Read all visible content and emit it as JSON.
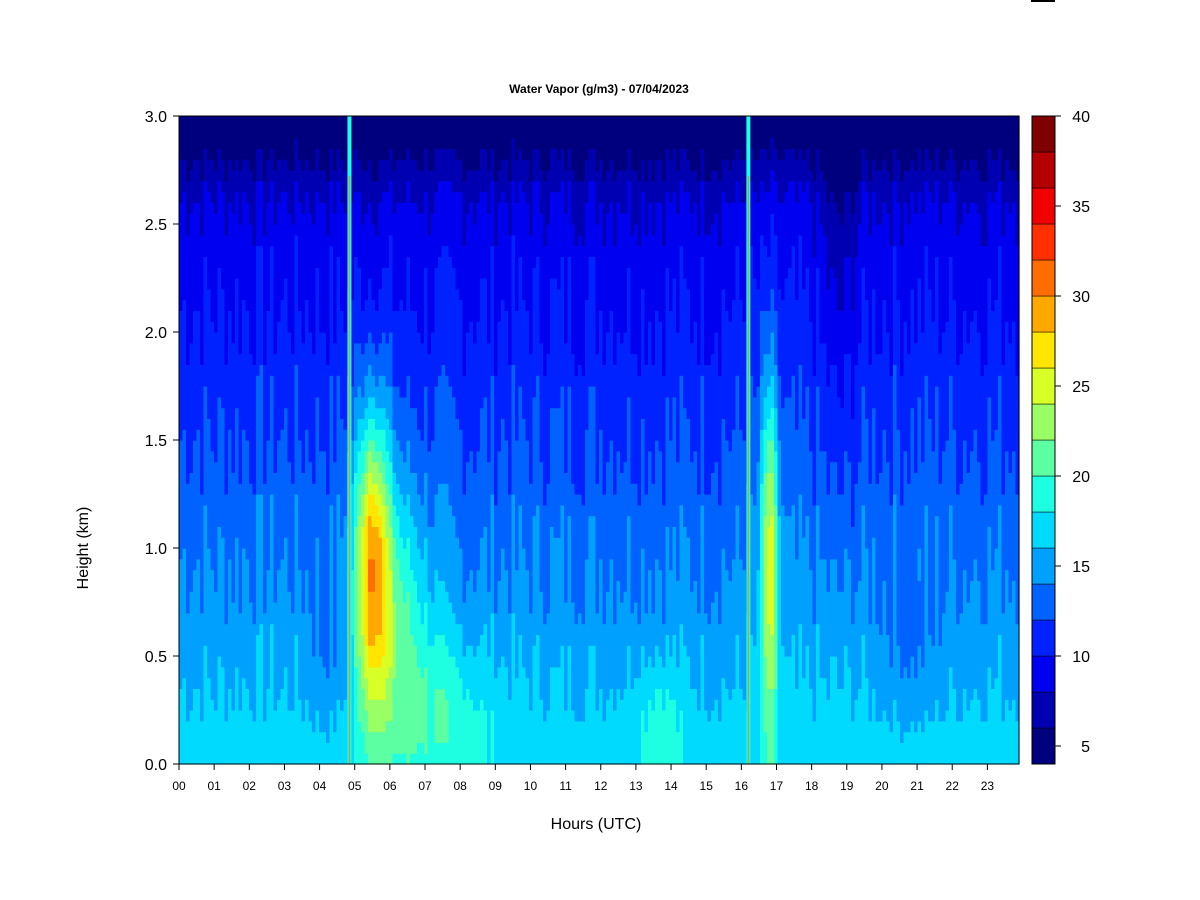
{
  "chart_data": {
    "type": "heatmap",
    "title": "Water Vapor (g/m3) - 07/04/2023",
    "xlabel": "Hours (UTC)",
    "ylabel": "Height (km)",
    "xlim": [
      0,
      23.9
    ],
    "ylim": [
      0.0,
      3.0
    ],
    "x_ticks": [
      "00",
      "01",
      "02",
      "03",
      "04",
      "05",
      "06",
      "07",
      "08",
      "09",
      "10",
      "11",
      "12",
      "13",
      "14",
      "15",
      "16",
      "17",
      "18",
      "19",
      "20",
      "21",
      "22",
      "23"
    ],
    "y_ticks": [
      "0.0",
      "0.5",
      "1.0",
      "1.5",
      "2.0",
      "2.5",
      "3.0"
    ],
    "colorbar": {
      "range": [
        4,
        40
      ],
      "step": 2,
      "tick_values": [
        5,
        10,
        15,
        20,
        25,
        30,
        35,
        40
      ],
      "tick_labels": [
        "5",
        "10",
        "15",
        "20",
        "25",
        "30",
        "35",
        "40"
      ],
      "colors": [
        "#00007f",
        "#0000b2",
        "#0000f0",
        "#0022ff",
        "#0062ff",
        "#00a0ff",
        "#00daff",
        "#1effe1",
        "#5cffa2",
        "#9aff64",
        "#d8ff26",
        "#ffe500",
        "#ffa800",
        "#ff6c00",
        "#ff2f00",
        "#f10000",
        "#b40000",
        "#7f0000"
      ]
    },
    "features": [
      {
        "hour": 4.85,
        "note": "narrow high-moisture column"
      },
      {
        "hour": 16.2,
        "note": "narrow column"
      },
      {
        "hour": 5.5,
        "peak_height_km": 0.9,
        "peak_value": 32
      },
      {
        "hour": 16.8,
        "peak_height_km": 0.9,
        "peak_value": 28
      }
    ]
  }
}
